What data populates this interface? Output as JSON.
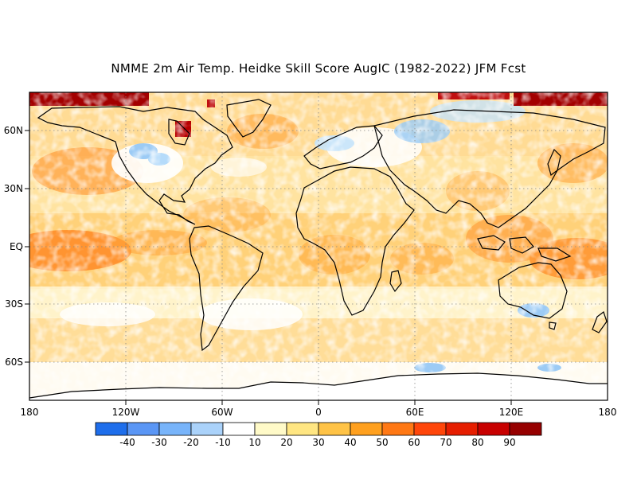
{
  "title": "NMME 2m Air Temp. Heidke Skill Score AugIC (1982-2022) JFM Fcst",
  "map": {
    "lon_labels": [
      "180",
      "120W",
      "60W",
      "0",
      "60E",
      "120E",
      "180"
    ],
    "lat_labels": [
      "60N",
      "30N",
      "EQ",
      "30S",
      "60S"
    ]
  },
  "legend": {
    "labels": [
      "-40",
      "-30",
      "-20",
      "-10",
      "10",
      "20",
      "30",
      "40",
      "50",
      "60",
      "70",
      "80",
      "90"
    ],
    "colors": [
      "#1e6eeb",
      "#5a96f5",
      "#78b4fa",
      "#aad2fa",
      "#ffffff",
      "#fffac8",
      "#ffe682",
      "#ffc346",
      "#ffa01e",
      "#ff7814",
      "#ff460a",
      "#e61e00",
      "#c80000",
      "#960000"
    ]
  }
}
